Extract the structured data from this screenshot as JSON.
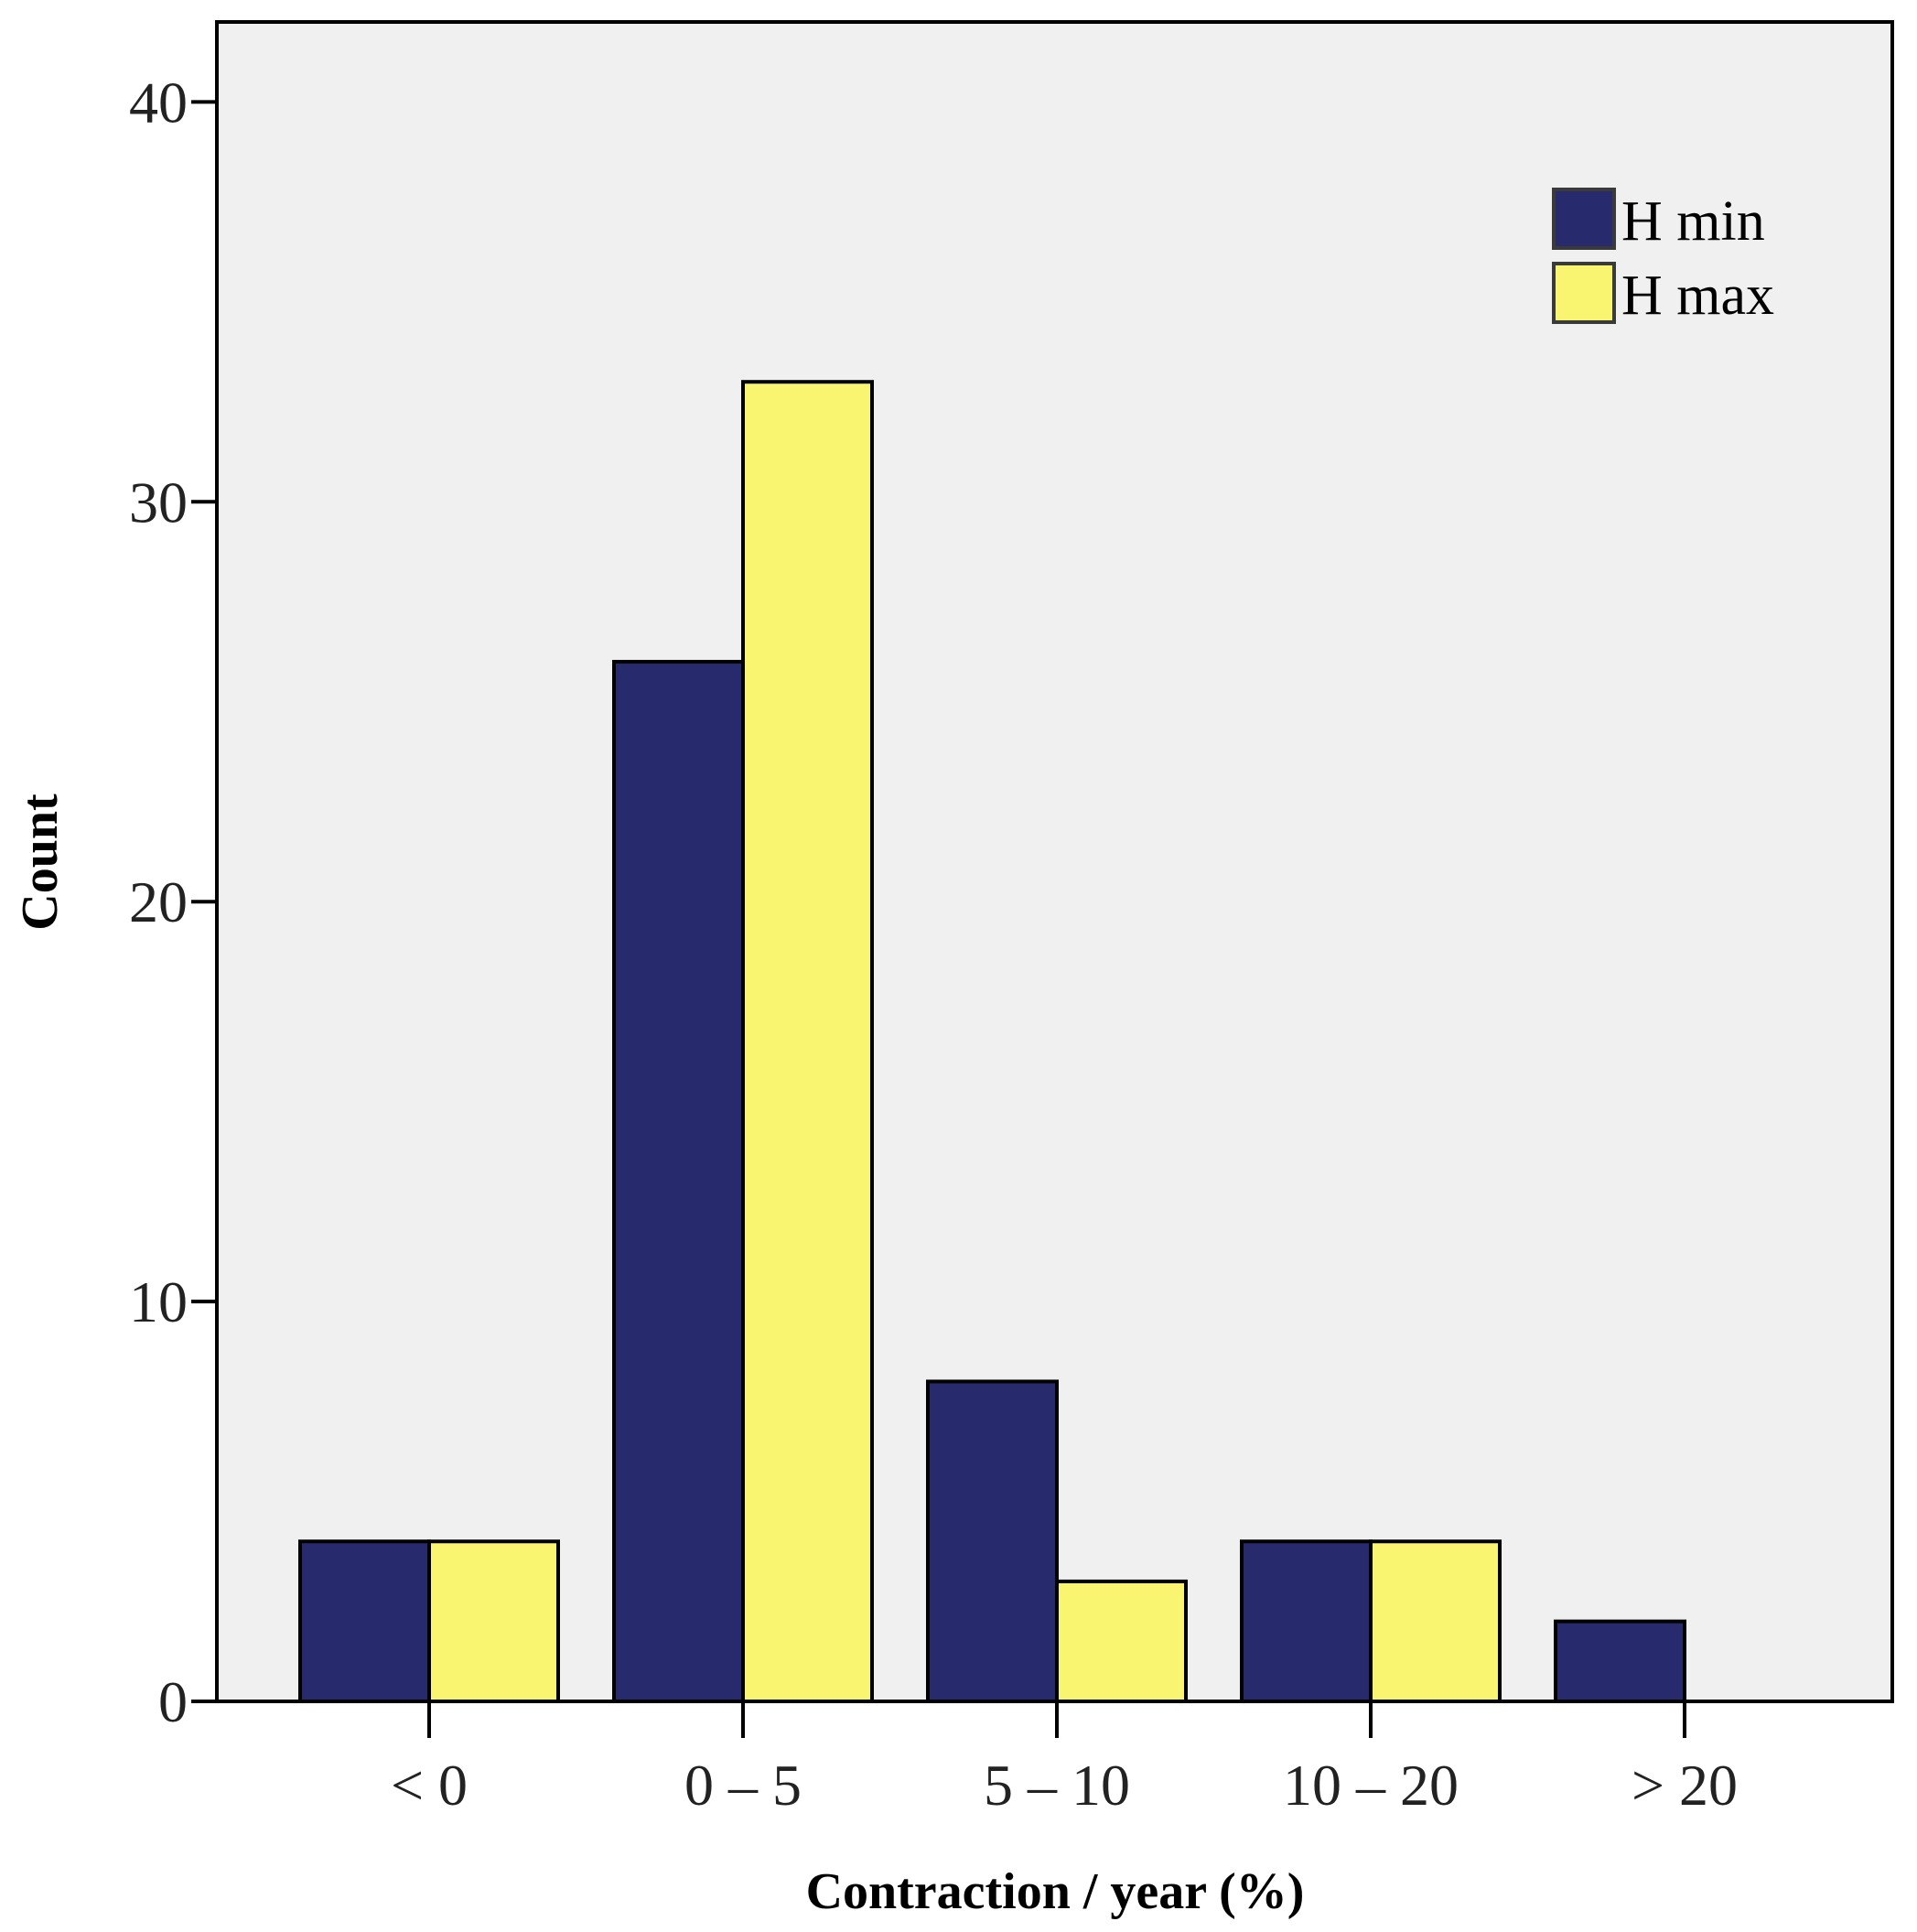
{
  "chart_data": {
    "type": "bar",
    "title": "",
    "xlabel": "Contraction / year (%)",
    "ylabel": "Count",
    "categories": [
      "< 0",
      "0 – 5",
      "5 – 10",
      "10 – 20",
      "> 20"
    ],
    "series": [
      {
        "name": "H min",
        "color": "#282a6e",
        "values": [
          4,
          26,
          8,
          4,
          2
        ]
      },
      {
        "name": "H max",
        "color": "#f9f571",
        "values": [
          4,
          33,
          3,
          4,
          0
        ]
      }
    ],
    "ylim": [
      0,
      42
    ],
    "yticks": [
      0,
      10,
      20,
      30,
      40
    ],
    "grid": false,
    "legend_position": "top-right",
    "plot_background": "#f0f0f0"
  }
}
